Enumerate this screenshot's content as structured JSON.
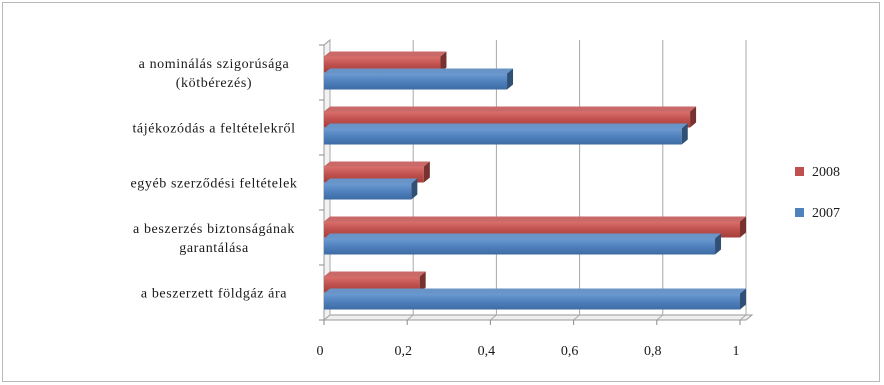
{
  "chart_data": {
    "type": "bar",
    "orientation": "horizontal",
    "style": "3d",
    "categories": [
      [
        "a nominálás szigorúsága",
        "(kötbérezés)"
      ],
      [
        "tájékozódás a feltételekről"
      ],
      [
        "egyéb szerződési feltételek"
      ],
      [
        "a beszerzés biztonságának",
        "garantálása"
      ],
      [
        "a beszerzett földgáz ára"
      ]
    ],
    "series": [
      {
        "name": "2008",
        "color": "#c0504d",
        "values": [
          0.28,
          0.88,
          0.24,
          1.0,
          0.23
        ]
      },
      {
        "name": "2007",
        "color": "#4f81bd",
        "values": [
          0.44,
          0.86,
          0.21,
          0.94,
          1.0
        ]
      }
    ],
    "xlim": [
      0,
      1
    ],
    "xticks": [
      0,
      0.2,
      0.4,
      0.6,
      0.8,
      1
    ],
    "xtick_labels": [
      "0",
      "0,2",
      "0,4",
      "0,6",
      "0,8",
      "1"
    ],
    "grid": "vertical",
    "legend": "right"
  }
}
